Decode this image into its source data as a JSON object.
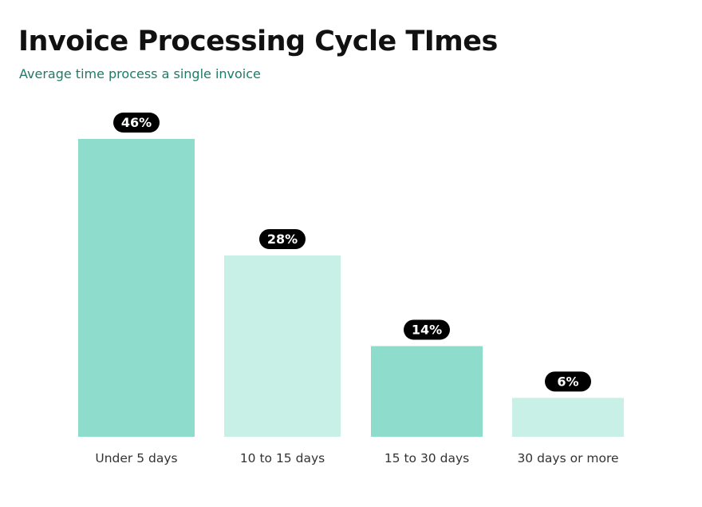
{
  "header": {
    "title": "Invoice Processing Cycle TImes",
    "subtitle": "Average time process a single invoice"
  },
  "chart_data": {
    "type": "bar",
    "title": "Invoice Processing Cycle TImes",
    "subtitle": "Average time process a single invoice",
    "xlabel": "",
    "ylabel": "",
    "categories": [
      "Under 5 days",
      "10 to 15 days",
      "15 to 30 days",
      "30 days or more"
    ],
    "values": [
      46,
      28,
      14,
      6
    ],
    "data_labels": [
      "46%",
      "28%",
      "14%",
      "6%"
    ],
    "unit": "%",
    "ylim": [
      0,
      50
    ],
    "grid": false,
    "legend": "none",
    "bar_colors": [
      "#8ddccc",
      "#c8f0e6",
      "#8ddccc",
      "#c8f0e6"
    ],
    "label_pill_color": "#000000"
  }
}
